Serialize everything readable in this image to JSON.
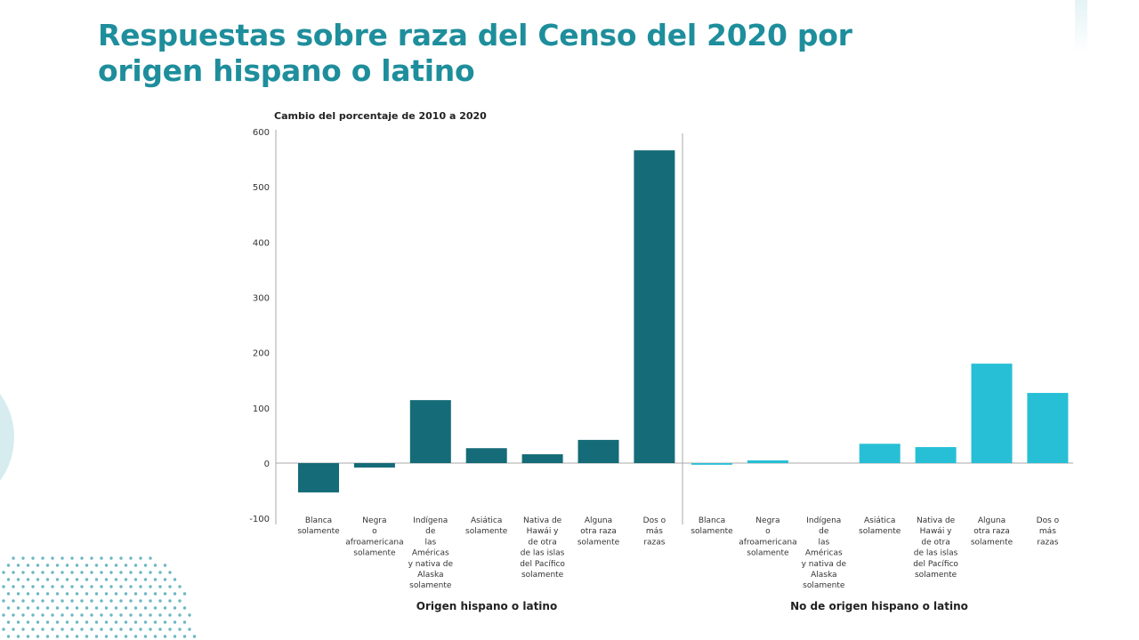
{
  "title": "Respuestas sobre raza del Censo del 2020 por origen hispano o latino",
  "colors": {
    "title": "#1e8e9c",
    "hispanic": "#156b77",
    "non_hispanic": "#27bfd6",
    "decoration": "#d6ecef"
  },
  "chart_data": {
    "type": "bar",
    "ylabel": "Cambio del porcentaje de 2010 a 2020",
    "ylim": [
      -100,
      600
    ],
    "yticks": [
      600,
      500,
      400,
      300,
      200,
      100,
      0,
      -100
    ],
    "grid": false,
    "categories": [
      "Blanca\nsolamente",
      "Negra\no\nafroamericana\nsolamente",
      "Indígena\nde\nlas\nAméricas\ny nativa de\nAlaska\nsolamente",
      "Asiática\nsolamente",
      "Nativa de\nHawái y\nde otra\nde las islas\ndel Pacífico\nsolamente",
      "Alguna\notra raza\nsolamente",
      "Dos o\nmás\nrazas"
    ],
    "series": [
      {
        "name": "Origen hispano o latino",
        "values": [
          -53,
          -8,
          114,
          27,
          16,
          42,
          566
        ]
      },
      {
        "name": "No de origen hispano o latino",
        "values": [
          -3,
          5,
          0,
          35,
          29,
          180,
          127
        ]
      }
    ]
  }
}
